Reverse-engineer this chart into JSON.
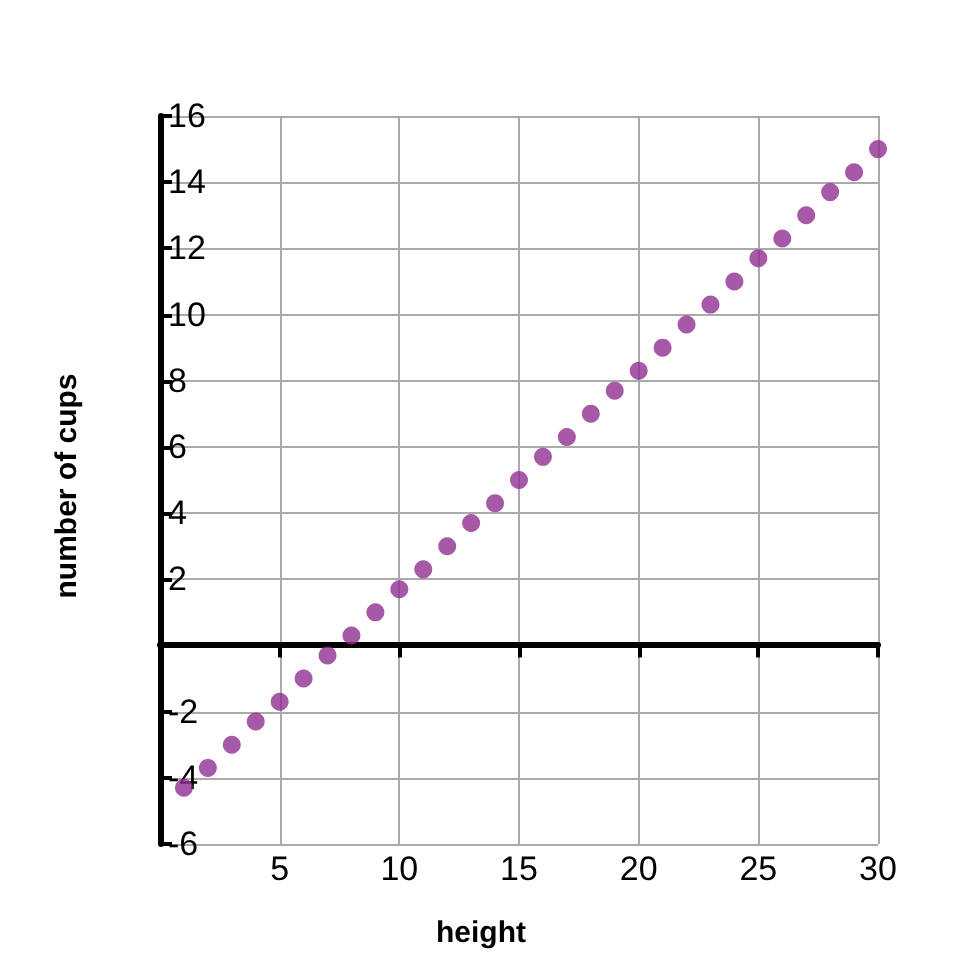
{
  "chart_data": {
    "type": "scatter",
    "xlabel": "height",
    "ylabel": "number of cups",
    "x": [
      1,
      2,
      3,
      4,
      5,
      6,
      7,
      8,
      9,
      10,
      11,
      12,
      13,
      14,
      15,
      16,
      17,
      18,
      19,
      20,
      21,
      22,
      23,
      24,
      25,
      26,
      27,
      28,
      29,
      30
    ],
    "series": [
      {
        "color": "#8e2f91",
        "values": [
          -4.3,
          -3.7,
          -3,
          -2.3,
          -1.7,
          -1,
          -0.3,
          0.3,
          1,
          1.7,
          2.3,
          3,
          3.7,
          4.3,
          5,
          5.7,
          6.3,
          7,
          7.7,
          8.3,
          9,
          9.7,
          10.3,
          11,
          11.7,
          12.3,
          13,
          13.7,
          14.3,
          15
        ]
      }
    ],
    "xlim": [
      0,
      30
    ],
    "xticks": [
      {
        "value": 0,
        "label": null
      },
      5,
      10,
      15,
      20,
      25,
      30
    ],
    "ylim": [
      -6,
      16
    ],
    "yticks": [
      -6,
      -4,
      -2,
      {
        "value": 0,
        "label": null
      },
      2,
      4,
      6,
      8,
      10,
      12,
      14,
      16
    ],
    "grid": true,
    "marker": "circle"
  }
}
